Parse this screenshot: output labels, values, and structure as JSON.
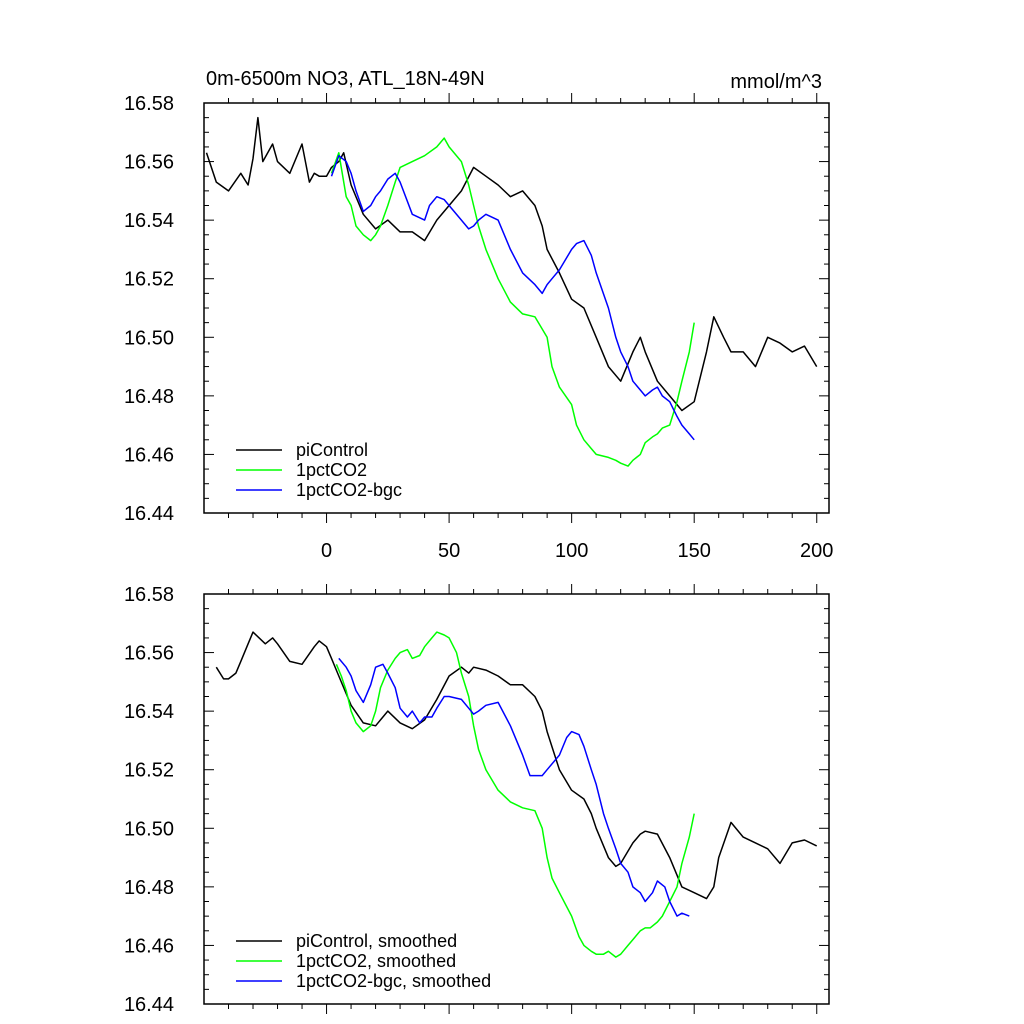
{
  "chart_data": [
    {
      "type": "line",
      "title_left": "0m-6500m NO3, ATL_18N-49N",
      "title_right": "mmol/m^3",
      "xlabel": "",
      "ylabel": "",
      "xlim": [
        -50,
        205
      ],
      "ylim": [
        16.44,
        16.58
      ],
      "yticks": [
        "16.44",
        "16.46",
        "16.48",
        "16.50",
        "16.52",
        "16.54",
        "16.56",
        "16.58"
      ],
      "xticks": [
        "0",
        "50",
        "100",
        "150",
        "200"
      ],
      "legend_position": "bottom-left",
      "series": [
        {
          "name": "piControl",
          "color": "#000000",
          "x": [
            -49,
            -45,
            -40,
            -35,
            -32,
            -30,
            -28,
            -26,
            -22,
            -20,
            -15,
            -10,
            -7,
            -5,
            -3,
            0,
            2,
            5,
            7,
            10,
            15,
            20,
            25,
            30,
            35,
            40,
            45,
            50,
            55,
            60,
            65,
            70,
            75,
            80,
            85,
            88,
            90,
            95,
            100,
            105,
            110,
            115,
            120,
            125,
            128,
            130,
            135,
            140,
            145,
            150,
            155,
            158,
            162,
            165,
            170,
            175,
            180,
            185,
            190,
            195,
            200
          ],
          "values": [
            16.563,
            16.553,
            16.55,
            16.556,
            16.552,
            16.561,
            16.575,
            16.56,
            16.566,
            16.56,
            16.556,
            16.566,
            16.553,
            16.556,
            16.555,
            16.555,
            16.558,
            16.56,
            16.563,
            16.552,
            16.542,
            16.537,
            16.54,
            16.536,
            16.536,
            16.533,
            16.54,
            16.545,
            16.55,
            16.558,
            16.555,
            16.552,
            16.548,
            16.55,
            16.545,
            16.538,
            16.53,
            16.522,
            16.513,
            16.51,
            16.5,
            16.49,
            16.485,
            16.495,
            16.5,
            16.495,
            16.485,
            16.48,
            16.475,
            16.478,
            16.495,
            16.507,
            16.5,
            16.495,
            16.495,
            16.49,
            16.5,
            16.498,
            16.495,
            16.497,
            16.49
          ]
        },
        {
          "name": "1pctCO2",
          "color": "#00ff00",
          "x": [
            2,
            5,
            8,
            10,
            12,
            15,
            18,
            20,
            22,
            25,
            28,
            30,
            35,
            40,
            45,
            48,
            50,
            55,
            58,
            60,
            62,
            65,
            70,
            75,
            80,
            85,
            90,
            92,
            95,
            100,
            102,
            105,
            108,
            110,
            115,
            118,
            120,
            123,
            125,
            128,
            130,
            133,
            135,
            137,
            140,
            143,
            145,
            148,
            150
          ],
          "values": [
            16.556,
            16.563,
            16.548,
            16.545,
            16.538,
            16.535,
            16.533,
            16.535,
            16.538,
            16.545,
            16.553,
            16.558,
            16.56,
            16.562,
            16.565,
            16.568,
            16.565,
            16.56,
            16.552,
            16.545,
            16.538,
            16.53,
            16.52,
            16.512,
            16.508,
            16.507,
            16.5,
            16.49,
            16.483,
            16.477,
            16.47,
            16.465,
            16.462,
            16.46,
            16.459,
            16.458,
            16.457,
            16.456,
            16.458,
            16.46,
            16.464,
            16.466,
            16.467,
            16.469,
            16.47,
            16.478,
            16.485,
            16.495,
            16.505
          ]
        },
        {
          "name": "1pctCO2-bgc",
          "color": "#0000ff",
          "x": [
            2,
            5,
            8,
            10,
            12,
            15,
            18,
            20,
            22,
            25,
            28,
            30,
            35,
            40,
            42,
            45,
            48,
            50,
            55,
            58,
            60,
            62,
            65,
            70,
            75,
            80,
            85,
            88,
            90,
            92,
            95,
            100,
            102,
            105,
            108,
            110,
            115,
            118,
            120,
            123,
            125,
            128,
            130,
            133,
            135,
            137,
            140,
            143,
            145,
            148,
            150
          ],
          "values": [
            16.555,
            16.562,
            16.56,
            16.556,
            16.55,
            16.543,
            16.545,
            16.548,
            16.55,
            16.554,
            16.556,
            16.553,
            16.542,
            16.54,
            16.545,
            16.548,
            16.547,
            16.545,
            16.54,
            16.537,
            16.538,
            16.54,
            16.542,
            16.54,
            16.53,
            16.522,
            16.518,
            16.515,
            16.518,
            16.52,
            16.523,
            16.53,
            16.532,
            16.533,
            16.528,
            16.522,
            16.51,
            16.5,
            16.495,
            16.49,
            16.485,
            16.482,
            16.48,
            16.482,
            16.483,
            16.48,
            16.478,
            16.473,
            16.47,
            16.467,
            16.465
          ]
        }
      ]
    },
    {
      "type": "line",
      "xlabel": "",
      "ylabel": "",
      "xlim": [
        -50,
        205
      ],
      "ylim": [
        16.44,
        16.58
      ],
      "yticks": [
        "16.44",
        "16.46",
        "16.48",
        "16.50",
        "16.52",
        "16.54",
        "16.56",
        "16.58"
      ],
      "legend_position": "bottom-left",
      "series": [
        {
          "name": "piControl, smoothed",
          "color": "#000000",
          "x": [
            -45,
            -42,
            -40,
            -37,
            -35,
            -32,
            -30,
            -25,
            -22,
            -20,
            -15,
            -10,
            -5,
            -3,
            0,
            2,
            5,
            10,
            15,
            20,
            25,
            30,
            35,
            40,
            45,
            50,
            55,
            58,
            60,
            65,
            70,
            75,
            80,
            85,
            88,
            90,
            95,
            100,
            105,
            108,
            110,
            115,
            118,
            120,
            125,
            128,
            130,
            135,
            140,
            145,
            150,
            155,
            158,
            160,
            165,
            170,
            175,
            180,
            185,
            190,
            195,
            200
          ],
          "values": [
            16.555,
            16.551,
            16.551,
            16.553,
            16.557,
            16.563,
            16.567,
            16.563,
            16.565,
            16.563,
            16.557,
            16.556,
            16.562,
            16.564,
            16.562,
            16.558,
            16.552,
            16.542,
            16.536,
            16.535,
            16.54,
            16.536,
            16.534,
            16.537,
            16.544,
            16.552,
            16.555,
            16.553,
            16.555,
            16.554,
            16.552,
            16.549,
            16.549,
            16.545,
            16.54,
            16.533,
            16.52,
            16.513,
            16.51,
            16.505,
            16.5,
            16.49,
            16.487,
            16.488,
            16.495,
            16.498,
            16.499,
            16.498,
            16.49,
            16.48,
            16.478,
            16.476,
            16.48,
            16.49,
            16.502,
            16.497,
            16.495,
            16.493,
            16.488,
            16.495,
            16.496,
            16.494
          ]
        },
        {
          "name": "1pctCO2, smoothed",
          "color": "#00ff00",
          "x": [
            4,
            6,
            8,
            10,
            12,
            15,
            18,
            20,
            22,
            25,
            28,
            30,
            33,
            35,
            38,
            40,
            43,
            45,
            48,
            50,
            53,
            55,
            58,
            60,
            62,
            65,
            70,
            75,
            80,
            85,
            88,
            90,
            92,
            95,
            100,
            103,
            105,
            108,
            110,
            113,
            115,
            118,
            120,
            123,
            125,
            128,
            130,
            132,
            135,
            137,
            140,
            143,
            145,
            148,
            150
          ],
          "values": [
            16.556,
            16.552,
            16.547,
            16.54,
            16.536,
            16.533,
            16.535,
            16.54,
            16.548,
            16.554,
            16.558,
            16.56,
            16.561,
            16.558,
            16.559,
            16.562,
            16.565,
            16.567,
            16.566,
            16.565,
            16.56,
            16.553,
            16.545,
            16.535,
            16.527,
            16.52,
            16.513,
            16.509,
            16.507,
            16.506,
            16.5,
            16.49,
            16.483,
            16.478,
            16.47,
            16.463,
            16.46,
            16.458,
            16.457,
            16.457,
            16.458,
            16.456,
            16.457,
            16.46,
            16.462,
            16.465,
            16.466,
            16.466,
            16.468,
            16.47,
            16.475,
            16.48,
            16.488,
            16.497,
            16.505
          ]
        },
        {
          "name": "1pctCO2-bgc, smoothed",
          "color": "#0000ff",
          "x": [
            5,
            8,
            10,
            12,
            15,
            18,
            20,
            23,
            25,
            28,
            30,
            33,
            35,
            38,
            40,
            43,
            45,
            48,
            50,
            55,
            58,
            60,
            62,
            65,
            70,
            75,
            80,
            83,
            85,
            88,
            90,
            95,
            98,
            100,
            103,
            105,
            108,
            110,
            113,
            115,
            118,
            120,
            123,
            125,
            128,
            130,
            133,
            135,
            138,
            140,
            143,
            145,
            148
          ],
          "values": [
            16.558,
            16.555,
            16.552,
            16.547,
            16.543,
            16.549,
            16.555,
            16.556,
            16.553,
            16.548,
            16.541,
            16.538,
            16.54,
            16.536,
            16.538,
            16.538,
            16.541,
            16.545,
            16.545,
            16.544,
            16.541,
            16.539,
            16.54,
            16.542,
            16.543,
            16.535,
            16.525,
            16.518,
            16.518,
            16.518,
            16.52,
            16.525,
            16.531,
            16.533,
            16.532,
            16.528,
            16.52,
            16.515,
            16.505,
            16.5,
            16.493,
            16.488,
            16.485,
            16.48,
            16.478,
            16.475,
            16.478,
            16.482,
            16.48,
            16.475,
            16.47,
            16.471,
            16.47
          ]
        }
      ]
    }
  ]
}
